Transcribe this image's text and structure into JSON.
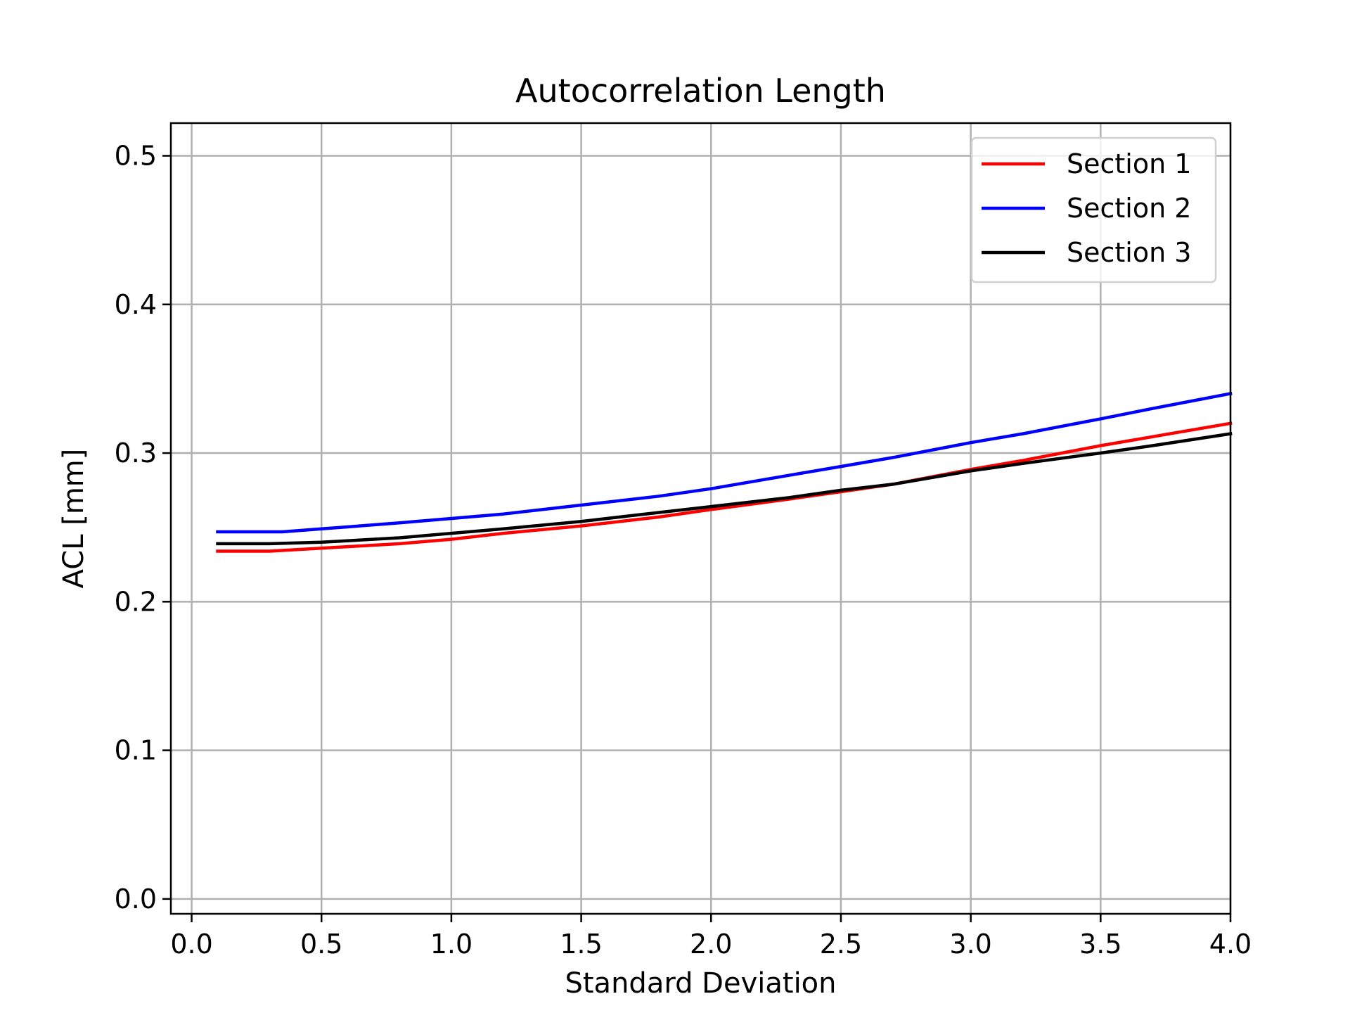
{
  "chart_data": {
    "type": "line",
    "title": "Autocorrelation Length",
    "xlabel": "Standard Deviation",
    "ylabel": "ACL [mm]",
    "xlim": [
      -0.08,
      4.0
    ],
    "ylim": [
      -0.01,
      0.522
    ],
    "xticks": [
      0.0,
      0.5,
      1.0,
      1.5,
      2.0,
      2.5,
      3.0,
      3.5,
      4.0
    ],
    "xtick_labels": [
      "0.0",
      "0.5",
      "1.0",
      "1.5",
      "2.0",
      "2.5",
      "3.0",
      "3.5",
      "4.0"
    ],
    "yticks": [
      0.0,
      0.1,
      0.2,
      0.3,
      0.4,
      0.5
    ],
    "ytick_labels": [
      "0.0",
      "0.1",
      "0.2",
      "0.3",
      "0.4",
      "0.5"
    ],
    "grid": true,
    "legend_position": "top-right",
    "series": [
      {
        "name": "Section 1",
        "color": "#ff0000",
        "x": [
          0.1,
          0.3,
          0.5,
          0.8,
          1.0,
          1.2,
          1.5,
          1.8,
          2.0,
          2.3,
          2.5,
          2.7,
          3.0,
          3.2,
          3.5,
          3.7,
          4.0
        ],
        "y": [
          0.234,
          0.234,
          0.236,
          0.239,
          0.242,
          0.246,
          0.251,
          0.257,
          0.262,
          0.269,
          0.274,
          0.279,
          0.289,
          0.295,
          0.305,
          0.311,
          0.32
        ]
      },
      {
        "name": "Section 2",
        "color": "#0000ff",
        "x": [
          0.1,
          0.35,
          0.5,
          0.8,
          1.0,
          1.2,
          1.5,
          1.8,
          2.0,
          2.3,
          2.5,
          2.7,
          3.0,
          3.2,
          3.5,
          3.7,
          4.0
        ],
        "y": [
          0.247,
          0.247,
          0.249,
          0.253,
          0.256,
          0.259,
          0.265,
          0.271,
          0.276,
          0.285,
          0.291,
          0.297,
          0.307,
          0.313,
          0.323,
          0.33,
          0.34
        ]
      },
      {
        "name": "Section 3",
        "color": "#000000",
        "x": [
          0.1,
          0.3,
          0.5,
          0.8,
          1.0,
          1.2,
          1.5,
          1.8,
          2.0,
          2.3,
          2.5,
          2.7,
          3.0,
          3.2,
          3.5,
          3.7,
          4.0
        ],
        "y": [
          0.239,
          0.239,
          0.24,
          0.243,
          0.246,
          0.249,
          0.254,
          0.26,
          0.264,
          0.27,
          0.275,
          0.279,
          0.288,
          0.293,
          0.3,
          0.305,
          0.313
        ]
      }
    ]
  }
}
